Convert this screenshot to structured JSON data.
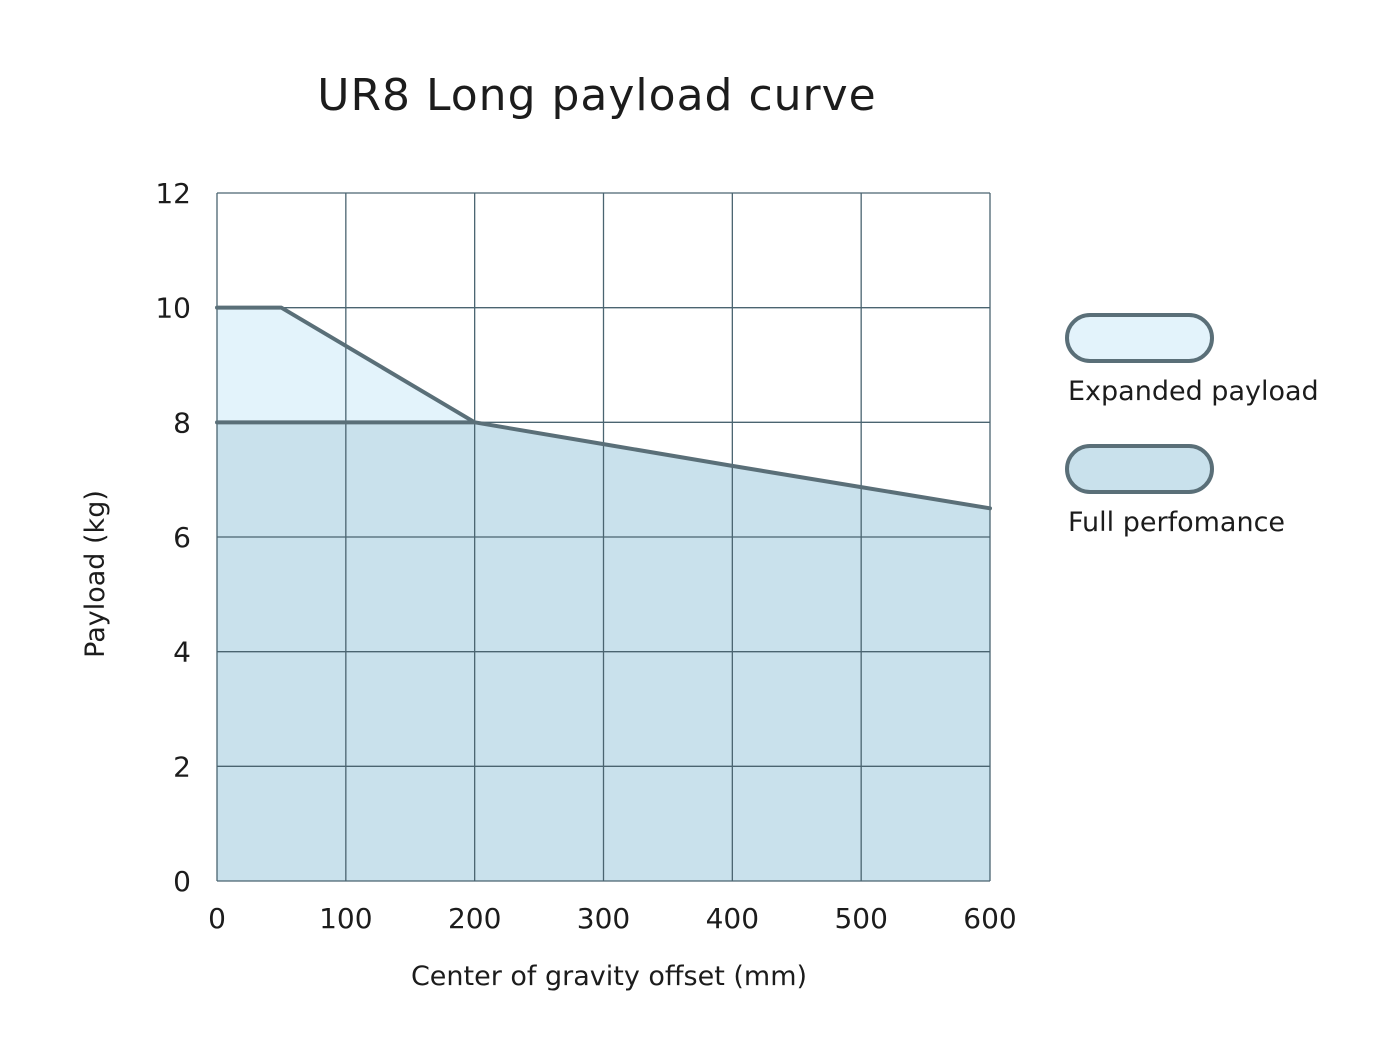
{
  "chart_data": {
    "type": "area",
    "title": "UR8 Long payload curve",
    "xlabel": "Center of gravity offset (mm)",
    "ylabel": "Payload (kg)",
    "xlim": [
      0,
      600
    ],
    "ylim": [
      0,
      12
    ],
    "x_ticks": [
      "0",
      "100",
      "200",
      "300",
      "400",
      "500",
      "600"
    ],
    "y_ticks": [
      "0",
      "2",
      "4",
      "6",
      "8",
      "10",
      "12"
    ],
    "grid": true,
    "legend_position": "right",
    "series": [
      {
        "name": "Expanded payload",
        "fill": "#e3f3fb",
        "stroke": "#5a6f78",
        "points": [
          [
            0,
            10
          ],
          [
            50,
            10
          ],
          [
            200,
            8
          ]
        ]
      },
      {
        "name": "Full perfomance",
        "fill": "#c9e1ec",
        "stroke": "#5a6f78",
        "points": [
          [
            0,
            8
          ],
          [
            200,
            8
          ],
          [
            300,
            7.62
          ],
          [
            400,
            7.24
          ],
          [
            500,
            6.87
          ],
          [
            600,
            6.5
          ]
        ]
      }
    ],
    "colors": {
      "grid": "#4a6470",
      "outline": "#5a6f78",
      "text": "#1c1c1c"
    }
  }
}
